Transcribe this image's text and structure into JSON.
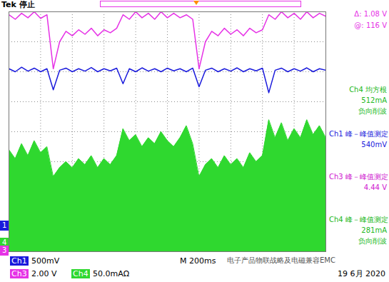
{
  "chart_data": {
    "type": "line",
    "title": "Tek 停止",
    "x": [
      0,
      0.2,
      0.4,
      0.6,
      0.8,
      1.0,
      1.2,
      1.4,
      1.6,
      1.8,
      2.0,
      2.2,
      2.4,
      2.6,
      2.8,
      3.0,
      3.2,
      3.4,
      3.6,
      3.8,
      4.0,
      4.2,
      4.4,
      4.6,
      4.8,
      5.0,
      5.2,
      5.4,
      5.6,
      5.8,
      6.0,
      6.2,
      6.4,
      6.6,
      6.8,
      7.0,
      7.2,
      7.4,
      7.6,
      7.8,
      8.0,
      8.2,
      8.4,
      8.6,
      8.8,
      9.0,
      9.2,
      9.4,
      9.6,
      9.8,
      10.0
    ],
    "xlim": [
      0,
      10
    ],
    "xticks": [
      0,
      1,
      2,
      3,
      4,
      5,
      6,
      7,
      8,
      9,
      10
    ],
    "ylim": [
      -4,
      4
    ],
    "yticks": [
      -4,
      -3,
      -2,
      -1,
      0,
      1,
      2,
      3,
      4
    ],
    "grid": true,
    "tick_labels": false,
    "series": [
      {
        "name": "Ch4",
        "type": "area",
        "color": "#2fd82f",
        "scale_label": "50.0mAΩ",
        "ground_label": "4",
        "ground": -3.7,
        "values": [
          -0.6,
          -0.9,
          -0.4,
          -0.8,
          -0.3,
          -0.7,
          -0.5,
          -1.5,
          -1.2,
          -1.0,
          -1.2,
          -0.9,
          -1.1,
          -0.8,
          -1.2,
          -0.9,
          -1.1,
          -0.8,
          0.1,
          -0.3,
          -0.1,
          -0.5,
          -0.2,
          -0.4,
          0.0,
          -0.3,
          -0.5,
          -0.2,
          0.2,
          -0.4,
          -1.5,
          -1.1,
          -0.9,
          -1.2,
          -0.8,
          -1.1,
          -0.9,
          -1.2,
          -0.7,
          -1.0,
          -0.8,
          0.4,
          -0.2,
          0.3,
          -0.3,
          0.1,
          -0.2,
          0.4,
          -0.1,
          0.2,
          -0.2
        ]
      },
      {
        "name": "Ch1",
        "type": "line",
        "color": "#1a1adc",
        "scale_label": "500mV",
        "ground_label": "1",
        "ground": -3.12,
        "values": [
          2.1,
          2.0,
          2.15,
          2.02,
          2.12,
          2.0,
          2.1,
          1.4,
          2.05,
          2.12,
          2.0,
          2.1,
          2.02,
          2.14,
          2.0,
          2.1,
          2.03,
          2.12,
          1.6,
          2.1,
          2.0,
          2.13,
          2.02,
          2.1,
          2.0,
          2.12,
          2.03,
          2.1,
          2.0,
          2.12,
          1.5,
          2.05,
          2.12,
          2.0,
          2.1,
          2.02,
          2.13,
          2.0,
          2.1,
          2.03,
          2.12,
          1.3,
          2.05,
          2.12,
          2.0,
          2.1,
          2.02,
          2.13,
          2.0,
          2.1,
          2.05
        ]
      },
      {
        "name": "Ch3",
        "type": "line",
        "color": "#e632e6",
        "scale_label": "2.00 V",
        "ground_label": "3",
        "ground": -4,
        "values": [
          3.9,
          3.75,
          3.95,
          3.8,
          4.0,
          3.78,
          3.9,
          2.1,
          3.0,
          3.35,
          3.2,
          3.4,
          3.25,
          3.45,
          3.2,
          3.4,
          3.3,
          3.45,
          3.9,
          3.75,
          4.0,
          3.8,
          3.95,
          3.75,
          4.0,
          3.8,
          3.95,
          3.8,
          3.9,
          3.75,
          2.1,
          3.0,
          3.35,
          3.2,
          3.45,
          3.25,
          3.4,
          3.2,
          3.45,
          3.3,
          3.4,
          3.9,
          3.75,
          4.0,
          3.8,
          3.95,
          3.75,
          4.0,
          3.8,
          3.95,
          3.85
        ]
      }
    ],
    "cursor": [
      "Δ:  1.08 V",
      "@:  116 V"
    ],
    "cursor_color": "#e632e6",
    "measurements": [
      {
        "lines": [
          "Ch4 均方根",
          "512mA",
          "负向削波"
        ],
        "color": "#22b822"
      },
      {
        "lines": [
          "Ch1 峰－峰值测定",
          "540mV"
        ],
        "color": "#1a1adc"
      },
      {
        "lines": [
          "Ch3 峰－峰值测定",
          "4.44 V"
        ],
        "color": "#d020d0"
      },
      {
        "lines": [
          "Ch4 峰－峰值测定",
          "281mA",
          "负向削波"
        ],
        "color": "#22b822"
      }
    ],
    "timebase": "M 200ms",
    "date": "19 6月  2020",
    "watermark": "电子产品物联战略及电磁兼容EMC"
  }
}
